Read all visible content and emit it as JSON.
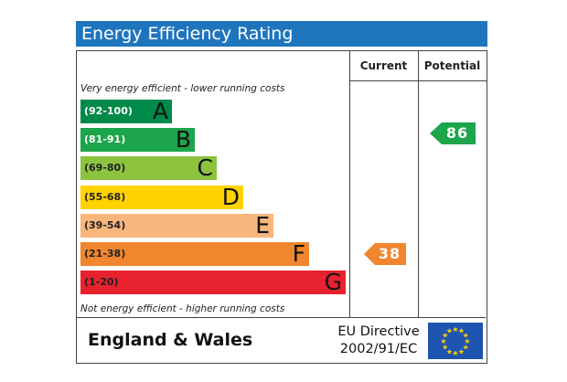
{
  "header": {
    "title": "Energy Efficiency Rating"
  },
  "columns": {
    "current": "Current",
    "potential": "Potential"
  },
  "captions": {
    "top": "Very energy efficient - lower running costs",
    "bottom": "Not energy efficient - higher running costs"
  },
  "bands": [
    {
      "range": "(92-100)",
      "letter": "A",
      "color": "#008a4a",
      "range_color": "#ffffff"
    },
    {
      "range": "(81-91)",
      "letter": "B",
      "color": "#1ca54a",
      "range_color": "#ffffff"
    },
    {
      "range": "(69-80)",
      "letter": "C",
      "color": "#8cc43f",
      "range_color": "#222222"
    },
    {
      "range": "(55-68)",
      "letter": "D",
      "color": "#ffd200",
      "range_color": "#222222"
    },
    {
      "range": "(39-54)",
      "letter": "E",
      "color": "#f8b57c",
      "range_color": "#222222"
    },
    {
      "range": "(21-38)",
      "letter": "F",
      "color": "#f0862e",
      "range_color": "#222222"
    },
    {
      "range": "(1-20)",
      "letter": "G",
      "color": "#e8212f",
      "range_color": "#222222"
    }
  ],
  "ratings": {
    "current": {
      "value": "38",
      "color": "#f0862e"
    },
    "potential": {
      "value": "86",
      "color": "#1ca54a"
    }
  },
  "footer": {
    "region": "England & Wales",
    "directive_line1": "EU Directive",
    "directive_line2": "2002/91/EC",
    "flag_color": "#1f54b0",
    "star_color": "#ffd200"
  }
}
